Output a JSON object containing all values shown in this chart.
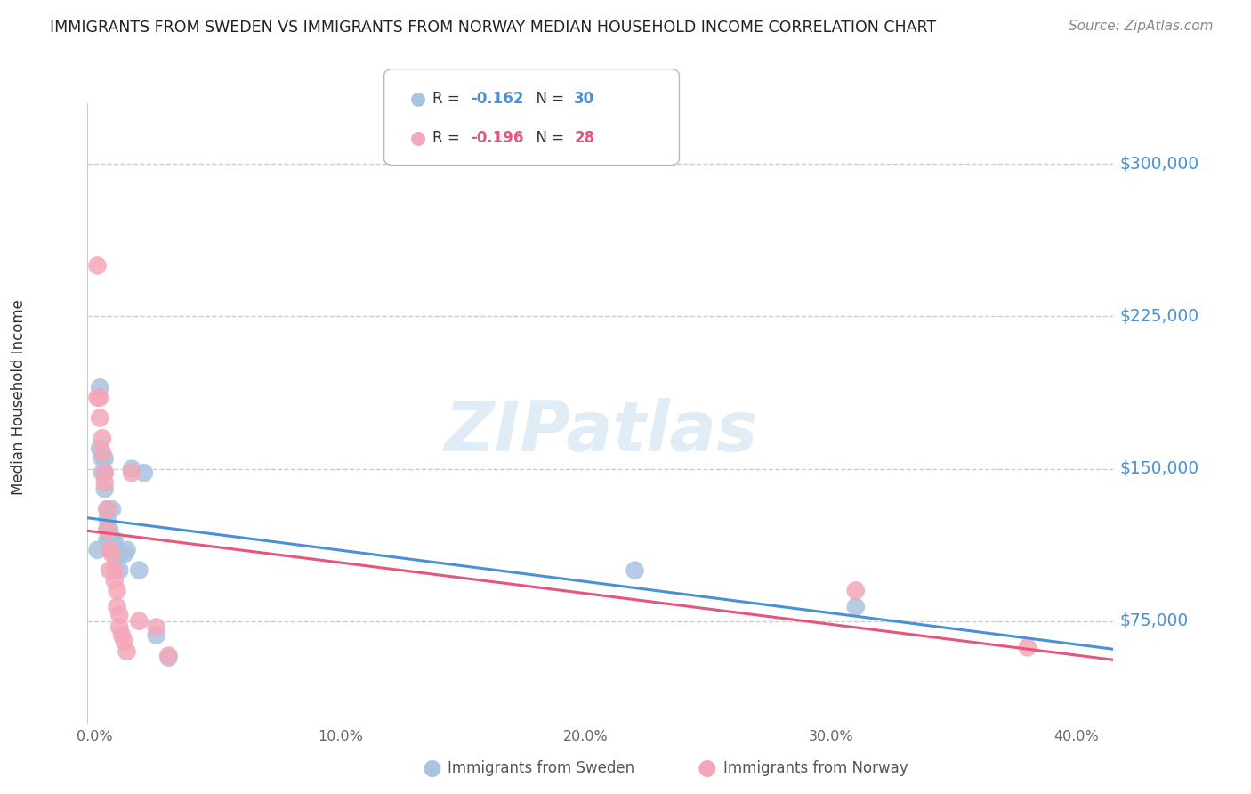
{
  "title": "IMMIGRANTS FROM SWEDEN VS IMMIGRANTS FROM NORWAY MEDIAN HOUSEHOLD INCOME CORRELATION CHART",
  "source": "Source: ZipAtlas.com",
  "ylabel": "Median Household Income",
  "ytick_labels": [
    "$75,000",
    "$150,000",
    "$225,000",
    "$300,000"
  ],
  "ytick_vals": [
    75000,
    150000,
    225000,
    300000
  ],
  "ylim": [
    25000,
    330000
  ],
  "xlim": [
    -0.003,
    0.415
  ],
  "color_sweden": "#a8c4e0",
  "color_norway": "#f4a7b9",
  "line_color_sweden": "#4a90d9",
  "line_color_norway": "#e8547a",
  "legend_r_sweden": "-0.162",
  "legend_n_sweden": "30",
  "legend_r_norway": "-0.196",
  "legend_n_norway": "28",
  "sweden_x": [
    0.001,
    0.002,
    0.002,
    0.003,
    0.003,
    0.004,
    0.004,
    0.004,
    0.005,
    0.005,
    0.005,
    0.005,
    0.006,
    0.006,
    0.007,
    0.007,
    0.008,
    0.008,
    0.009,
    0.01,
    0.01,
    0.012,
    0.013,
    0.015,
    0.018,
    0.02,
    0.025,
    0.03,
    0.22,
    0.31
  ],
  "sweden_y": [
    110000,
    190000,
    160000,
    155000,
    148000,
    155000,
    148000,
    140000,
    130000,
    125000,
    120000,
    115000,
    120000,
    115000,
    130000,
    115000,
    115000,
    108000,
    110000,
    108000,
    100000,
    108000,
    110000,
    150000,
    100000,
    148000,
    68000,
    57000,
    100000,
    82000
  ],
  "norway_x": [
    0.001,
    0.001,
    0.002,
    0.002,
    0.003,
    0.003,
    0.004,
    0.004,
    0.005,
    0.005,
    0.006,
    0.006,
    0.007,
    0.008,
    0.008,
    0.009,
    0.009,
    0.01,
    0.01,
    0.011,
    0.012,
    0.013,
    0.015,
    0.018,
    0.025,
    0.03,
    0.31,
    0.38
  ],
  "norway_y": [
    250000,
    185000,
    185000,
    175000,
    165000,
    158000,
    148000,
    143000,
    130000,
    120000,
    110000,
    100000,
    108000,
    100000,
    95000,
    90000,
    82000,
    78000,
    72000,
    68000,
    65000,
    60000,
    148000,
    75000,
    72000,
    58000,
    90000,
    62000
  ],
  "sweden_line_x": [
    0.0,
    0.4
  ],
  "sweden_line_y": [
    114000,
    82000
  ],
  "norway_line_x": [
    0.0,
    0.4
  ],
  "norway_line_y": [
    118000,
    65000
  ],
  "marker_size": 220,
  "background_color": "#ffffff"
}
